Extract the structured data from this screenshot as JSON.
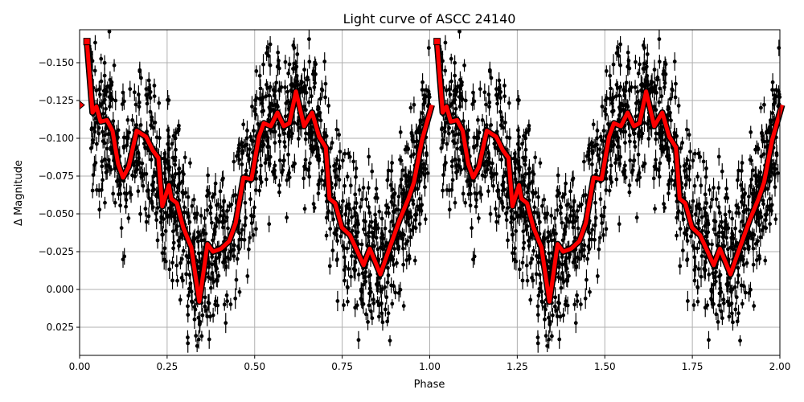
{
  "chart_data": {
    "type": "scatter",
    "title": "Light curve of ASCC 24140",
    "xlabel": "Phase",
    "ylabel": "Δ Magnitude",
    "xlim": [
      0,
      2
    ],
    "ylim": [
      0.0436,
      -0.1718
    ],
    "y_inverted": true,
    "grid": true,
    "xticks": [
      "0.00",
      "0.25",
      "0.50",
      "0.75",
      "1.00",
      "1.25",
      "1.50",
      "1.75",
      "2.00"
    ],
    "xtick_values": [
      0,
      0.25,
      0.5,
      0.75,
      1,
      1.25,
      1.5,
      1.75,
      2
    ],
    "yticks": [
      "−0.150",
      "−0.125",
      "−0.100",
      "−0.075",
      "−0.050",
      "−0.025",
      "0.000",
      "0.025"
    ],
    "ytick_values": [
      -0.15,
      -0.125,
      -0.1,
      -0.075,
      -0.05,
      -0.025,
      0,
      0.025
    ],
    "colors": {
      "points": "#000000",
      "model": "#ff0000",
      "model_edge": "#000000"
    },
    "series": [
      {
        "kind": "binned-model-line",
        "x": [
          0.021,
          0.037,
          0.048,
          0.06,
          0.078,
          0.094,
          0.11,
          0.124,
          0.14,
          0.163,
          0.19,
          0.209,
          0.225,
          0.236,
          0.255,
          0.262,
          0.278,
          0.296,
          0.319,
          0.342,
          0.365,
          0.381,
          0.404,
          0.427,
          0.446,
          0.468,
          0.491,
          0.512,
          0.526,
          0.546,
          0.565,
          0.583,
          0.599,
          0.618,
          0.641,
          0.664,
          0.684,
          0.703,
          0.714,
          0.73,
          0.749,
          0.772,
          0.79,
          0.811,
          0.829,
          0.859,
          0.886,
          0.914,
          0.939,
          0.955,
          0.978,
          1.006
        ],
        "y": [
          -0.164,
          -0.117,
          -0.121,
          -0.111,
          -0.112,
          -0.105,
          -0.083,
          -0.074,
          -0.081,
          -0.105,
          -0.101,
          -0.092,
          -0.087,
          -0.055,
          -0.069,
          -0.06,
          -0.057,
          -0.041,
          -0.028,
          0.008,
          -0.03,
          -0.025,
          -0.027,
          -0.032,
          -0.044,
          -0.074,
          -0.073,
          -0.101,
          -0.11,
          -0.108,
          -0.117,
          -0.108,
          -0.11,
          -0.131,
          -0.108,
          -0.117,
          -0.101,
          -0.094,
          -0.06,
          -0.057,
          -0.041,
          -0.036,
          -0.027,
          -0.016,
          -0.027,
          -0.01,
          -0.028,
          -0.046,
          -0.06,
          -0.071,
          -0.099,
          -0.122
        ],
        "repeat_offset": 1
      },
      {
        "kind": "observations-with-errorbars",
        "note_visible": false
      }
    ]
  }
}
